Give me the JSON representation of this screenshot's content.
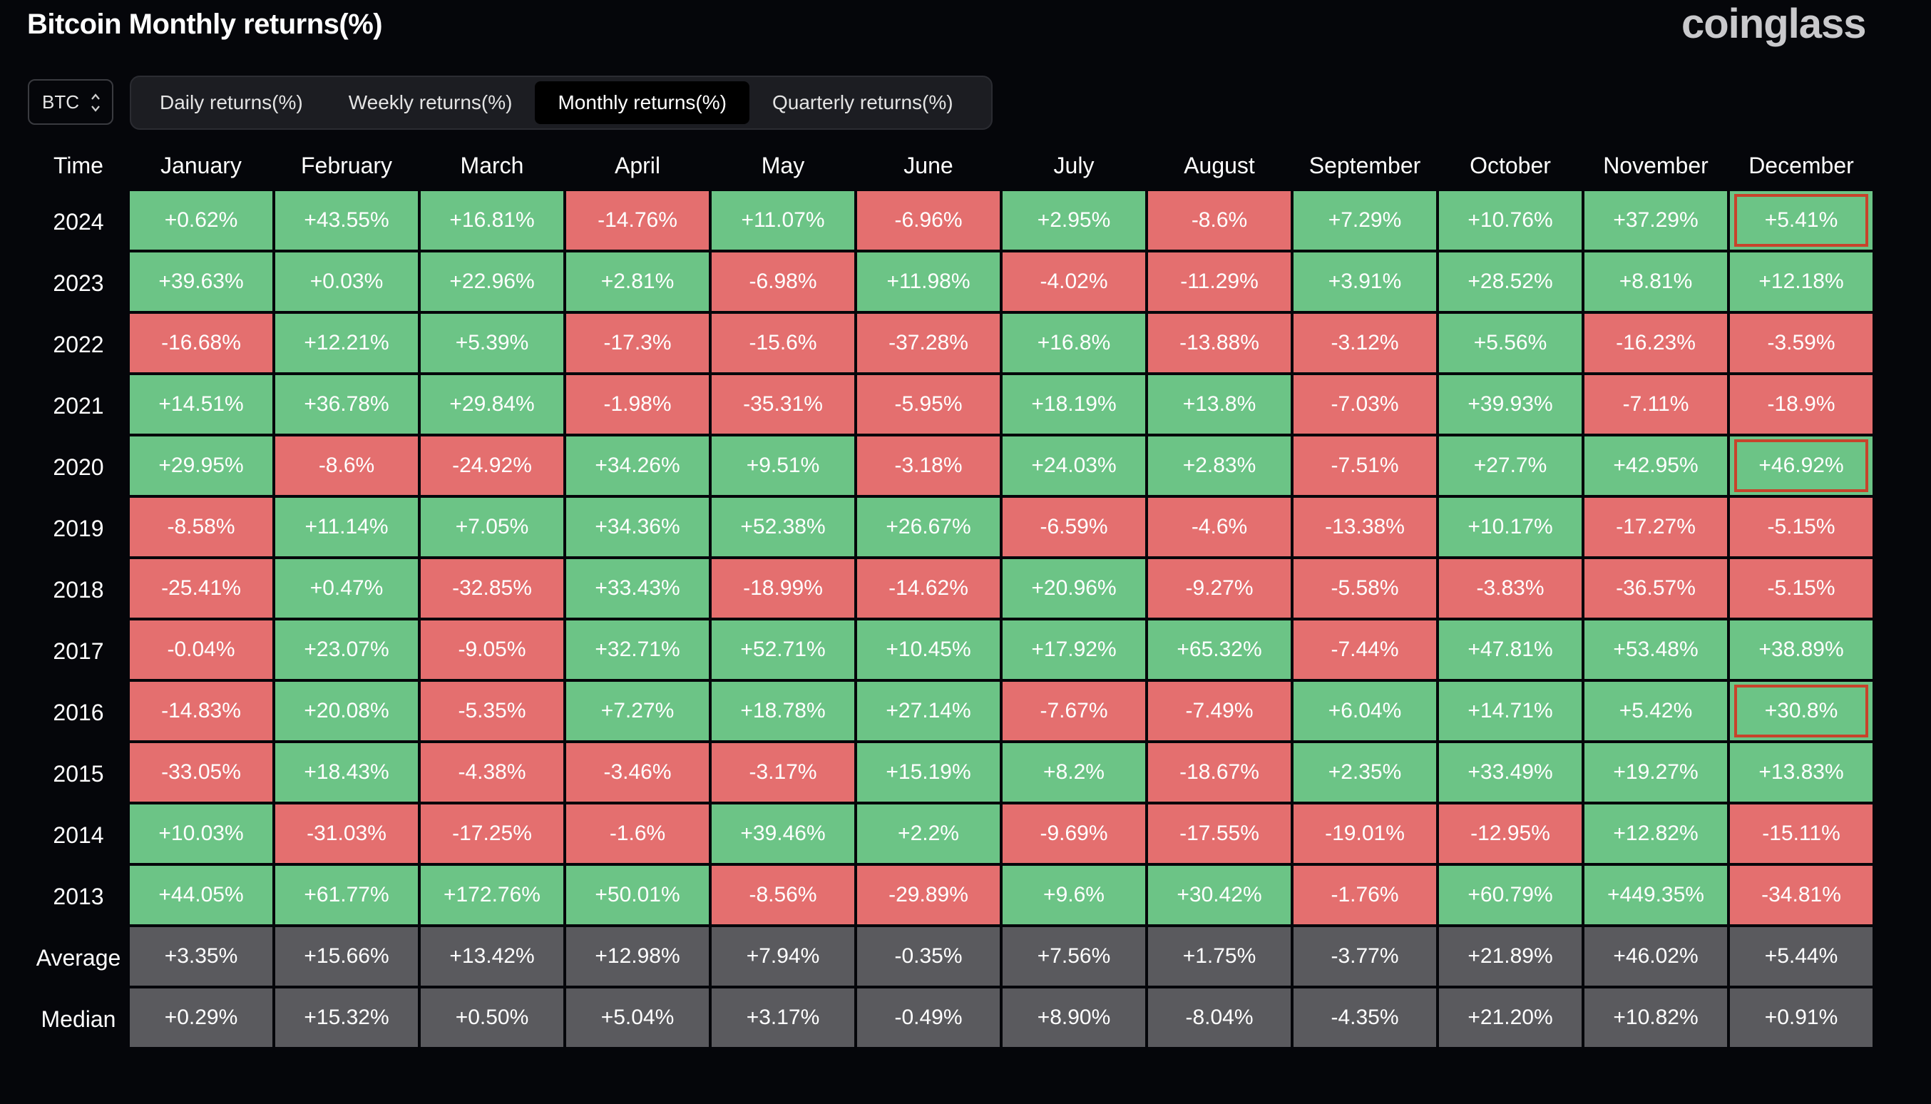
{
  "title": "Bitcoin Monthly returns(%)",
  "brand": "coinglass",
  "coin_select": {
    "value": "BTC",
    "icon": "chevron-up-down-icon"
  },
  "tabs": [
    {
      "label": "Daily returns(%)",
      "active": false
    },
    {
      "label": "Weekly returns(%)",
      "active": false
    },
    {
      "label": "Monthly returns(%)",
      "active": true
    },
    {
      "label": "Quarterly returns(%)",
      "active": false
    }
  ],
  "colors": {
    "positive": "#6cc486",
    "negative": "#e46f6f",
    "stat": "#5a5a5e",
    "highlight": "#c8432b"
  },
  "table": {
    "headers": [
      "Time",
      "January",
      "February",
      "March",
      "April",
      "May",
      "June",
      "July",
      "August",
      "September",
      "October",
      "November",
      "December"
    ],
    "rows": [
      {
        "label": "2024",
        "values": [
          "+0.62%",
          "+43.55%",
          "+16.81%",
          "-14.76%",
          "+11.07%",
          "-6.96%",
          "+2.95%",
          "-8.6%",
          "+7.29%",
          "+10.76%",
          "+37.29%",
          "+5.41%"
        ],
        "highlight": 11
      },
      {
        "label": "2023",
        "values": [
          "+39.63%",
          "+0.03%",
          "+22.96%",
          "+2.81%",
          "-6.98%",
          "+11.98%",
          "-4.02%",
          "-11.29%",
          "+3.91%",
          "+28.52%",
          "+8.81%",
          "+12.18%"
        ]
      },
      {
        "label": "2022",
        "values": [
          "-16.68%",
          "+12.21%",
          "+5.39%",
          "-17.3%",
          "-15.6%",
          "-37.28%",
          "+16.8%",
          "-13.88%",
          "-3.12%",
          "+5.56%",
          "-16.23%",
          "-3.59%"
        ]
      },
      {
        "label": "2021",
        "values": [
          "+14.51%",
          "+36.78%",
          "+29.84%",
          "-1.98%",
          "-35.31%",
          "-5.95%",
          "+18.19%",
          "+13.8%",
          "-7.03%",
          "+39.93%",
          "-7.11%",
          "-18.9%"
        ]
      },
      {
        "label": "2020",
        "values": [
          "+29.95%",
          "-8.6%",
          "-24.92%",
          "+34.26%",
          "+9.51%",
          "-3.18%",
          "+24.03%",
          "+2.83%",
          "-7.51%",
          "+27.7%",
          "+42.95%",
          "+46.92%"
        ],
        "highlight": 11
      },
      {
        "label": "2019",
        "values": [
          "-8.58%",
          "+11.14%",
          "+7.05%",
          "+34.36%",
          "+52.38%",
          "+26.67%",
          "-6.59%",
          "-4.6%",
          "-13.38%",
          "+10.17%",
          "-17.27%",
          "-5.15%"
        ]
      },
      {
        "label": "2018",
        "values": [
          "-25.41%",
          "+0.47%",
          "-32.85%",
          "+33.43%",
          "-18.99%",
          "-14.62%",
          "+20.96%",
          "-9.27%",
          "-5.58%",
          "-3.83%",
          "-36.57%",
          "-5.15%"
        ]
      },
      {
        "label": "2017",
        "values": [
          "-0.04%",
          "+23.07%",
          "-9.05%",
          "+32.71%",
          "+52.71%",
          "+10.45%",
          "+17.92%",
          "+65.32%",
          "-7.44%",
          "+47.81%",
          "+53.48%",
          "+38.89%"
        ]
      },
      {
        "label": "2016",
        "values": [
          "-14.83%",
          "+20.08%",
          "-5.35%",
          "+7.27%",
          "+18.78%",
          "+27.14%",
          "-7.67%",
          "-7.49%",
          "+6.04%",
          "+14.71%",
          "+5.42%",
          "+30.8%"
        ],
        "highlight": 11
      },
      {
        "label": "2015",
        "values": [
          "-33.05%",
          "+18.43%",
          "-4.38%",
          "-3.46%",
          "-3.17%",
          "+15.19%",
          "+8.2%",
          "-18.67%",
          "+2.35%",
          "+33.49%",
          "+19.27%",
          "+13.83%"
        ]
      },
      {
        "label": "2014",
        "values": [
          "+10.03%",
          "-31.03%",
          "-17.25%",
          "-1.6%",
          "+39.46%",
          "+2.2%",
          "-9.69%",
          "-17.55%",
          "-19.01%",
          "-12.95%",
          "+12.82%",
          "-15.11%"
        ]
      },
      {
        "label": "2013",
        "values": [
          "+44.05%",
          "+61.77%",
          "+172.76%",
          "+50.01%",
          "-8.56%",
          "-29.89%",
          "+9.6%",
          "+30.42%",
          "-1.76%",
          "+60.79%",
          "+449.35%",
          "-34.81%"
        ]
      }
    ],
    "stats": [
      {
        "label": "Average",
        "values": [
          "+3.35%",
          "+15.66%",
          "+13.42%",
          "+12.98%",
          "+7.94%",
          "-0.35%",
          "+7.56%",
          "+1.75%",
          "-3.77%",
          "+21.89%",
          "+46.02%",
          "+5.44%"
        ]
      },
      {
        "label": "Median",
        "values": [
          "+0.29%",
          "+15.32%",
          "+0.50%",
          "+5.04%",
          "+3.17%",
          "-0.49%",
          "+8.90%",
          "-8.04%",
          "-4.35%",
          "+21.20%",
          "+10.82%",
          "+0.91%"
        ]
      }
    ]
  }
}
